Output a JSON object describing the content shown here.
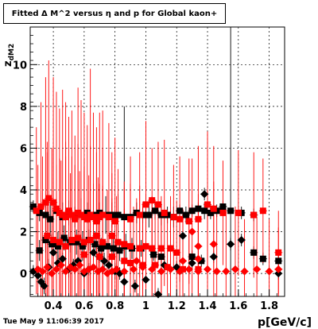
{
  "chart_data": {
    "type": "scatter",
    "title": "Fitted Δ M^2 versus η and p for Global kaon+",
    "xlabel": "p[GeV/c]",
    "ylabel": "z_dM2",
    "xlim": [
      0.25,
      1.9
    ],
    "ylim": [
      -1.1,
      11.8
    ],
    "xticks": [
      0.4,
      0.6,
      0.8,
      1.0,
      1.2,
      1.4,
      1.6,
      1.8
    ],
    "xtick_labels": [
      "0.4",
      "0.6",
      "0.8",
      "1",
      "1.2",
      "1.4",
      "1.6",
      "1.8"
    ],
    "yticks": [
      0,
      2,
      4,
      6,
      8,
      10
    ],
    "ytick_labels": [
      "0",
      "2",
      "4",
      "6",
      "8",
      "10"
    ],
    "grid": true,
    "series": [
      {
        "marker": "square",
        "color": "#000000",
        "points": [
          [
            0.27,
            3.2,
            0.3
          ],
          [
            0.31,
            2.9,
            0.4
          ],
          [
            0.35,
            2.8,
            0.6
          ],
          [
            0.38,
            2.6,
            0.8
          ],
          [
            0.42,
            3.0,
            0.5
          ],
          [
            0.46,
            2.7,
            0.7
          ],
          [
            0.5,
            2.9,
            0.6
          ],
          [
            0.54,
            2.7,
            0.5
          ],
          [
            0.58,
            2.8,
            0.8
          ],
          [
            0.62,
            2.9,
            0.5
          ],
          [
            0.66,
            2.8,
            0.6
          ],
          [
            0.7,
            2.9,
            0.5
          ],
          [
            0.74,
            2.8,
            0.9
          ],
          [
            0.78,
            2.8,
            0.6
          ],
          [
            0.82,
            2.8,
            1.0
          ],
          [
            0.86,
            2.7,
            5.3
          ],
          [
            0.9,
            2.7,
            0.6
          ],
          [
            0.94,
            2.9,
            0.5
          ],
          [
            0.98,
            2.8,
            0.4
          ],
          [
            1.02,
            2.8,
            0.6
          ],
          [
            1.06,
            3.0,
            0.4
          ],
          [
            1.1,
            2.8,
            0.5
          ],
          [
            1.14,
            2.8,
            0.4
          ],
          [
            1.18,
            2.7,
            0.5
          ],
          [
            1.22,
            3.0,
            0.3
          ],
          [
            1.26,
            2.8,
            0.4
          ],
          [
            1.3,
            3.0,
            0.3
          ],
          [
            1.34,
            3.1,
            0.3
          ],
          [
            1.38,
            3.0,
            0.4
          ],
          [
            1.42,
            2.9,
            0.3
          ],
          [
            1.46,
            3.0,
            0.3
          ],
          [
            1.5,
            3.2,
            0.3
          ],
          [
            1.55,
            3.0,
            10.8
          ],
          [
            1.62,
            2.9,
            0.3
          ],
          [
            1.7,
            2.8,
            0.3
          ],
          [
            0.31,
            1.1,
            0.5
          ],
          [
            0.35,
            1.6,
            0.6
          ],
          [
            0.39,
            1.4,
            0.5
          ],
          [
            0.43,
            1.3,
            0.7
          ],
          [
            0.47,
            1.7,
            0.6
          ],
          [
            0.51,
            1.5,
            0.5
          ],
          [
            0.55,
            1.5,
            0.6
          ],
          [
            0.59,
            1.3,
            0.7
          ],
          [
            0.63,
            1.6,
            0.5
          ],
          [
            0.67,
            1.4,
            0.6
          ],
          [
            0.71,
            1.2,
            0.5
          ],
          [
            0.75,
            1.3,
            0.6
          ],
          [
            0.79,
            1.2,
            0.5
          ],
          [
            0.83,
            1.1,
            0.5
          ],
          [
            0.87,
            1.3,
            0.6
          ],
          [
            0.91,
            1.2,
            0.5
          ],
          [
            0.97,
            1.2,
            0.4
          ],
          [
            1.05,
            0.9,
            0.3
          ],
          [
            1.1,
            0.8,
            0.4
          ],
          [
            1.3,
            0.8,
            0.3
          ],
          [
            1.36,
            0.6,
            0.3
          ],
          [
            1.7,
            1.0,
            0.3
          ],
          [
            1.76,
            0.7,
            0.3
          ],
          [
            1.86,
            0.6,
            0.3
          ]
        ]
      },
      {
        "marker": "diamond",
        "color": "#000000",
        "points": [
          [
            0.27,
            0.1,
            0.3
          ],
          [
            0.3,
            -0.1,
            0.4
          ],
          [
            0.32,
            -0.4,
            0.3
          ],
          [
            0.34,
            -0.6,
            0.4
          ],
          [
            0.37,
            0.3,
            0.4
          ],
          [
            0.4,
            1.0,
            0.3
          ],
          [
            0.43,
            0.5,
            0.4
          ],
          [
            0.46,
            0.7,
            0.3
          ],
          [
            0.5,
            0.2,
            0.4
          ],
          [
            0.53,
            0.4,
            0.3
          ],
          [
            0.56,
            0.6,
            0.5
          ],
          [
            0.6,
            0.0,
            0.4
          ],
          [
            0.63,
            0.2,
            0.3
          ],
          [
            0.66,
            1.0,
            0.4
          ],
          [
            0.7,
            0.8,
            0.3
          ],
          [
            0.73,
            0.6,
            0.4
          ],
          [
            0.76,
            0.4,
            0.3
          ],
          [
            0.8,
            0.1,
            0.4
          ],
          [
            0.83,
            0.0,
            0.3
          ],
          [
            0.86,
            -0.4,
            0.3
          ],
          [
            0.93,
            -0.6,
            0.3
          ],
          [
            1.0,
            -0.3,
            0.3
          ],
          [
            1.08,
            -1.0,
            0.3
          ],
          [
            1.12,
            0.4,
            0.3
          ],
          [
            1.2,
            0.3,
            0.3
          ],
          [
            1.24,
            1.8,
            0.3
          ],
          [
            1.3,
            0.5,
            0.3
          ],
          [
            1.38,
            3.8,
            0.3
          ],
          [
            1.44,
            0.8,
            0.3
          ],
          [
            1.55,
            1.4,
            0.3
          ],
          [
            1.62,
            1.6,
            0.3
          ],
          [
            1.86,
            0.0,
            0.3
          ]
        ]
      },
      {
        "marker": "square",
        "color": "#ff0000",
        "points": [
          [
            0.29,
            3.0,
            4.0
          ],
          [
            0.32,
            3.2,
            5.0
          ],
          [
            0.35,
            3.4,
            6.0
          ],
          [
            0.37,
            3.6,
            6.6
          ],
          [
            0.4,
            3.4,
            6.0
          ],
          [
            0.42,
            3.1,
            5.6
          ],
          [
            0.44,
            2.9,
            5.0
          ],
          [
            0.46,
            2.8,
            6.0
          ],
          [
            0.48,
            2.7,
            5.5
          ],
          [
            0.5,
            3.0,
            4.5
          ],
          [
            0.52,
            2.8,
            5.0
          ],
          [
            0.54,
            2.6,
            4.0
          ],
          [
            0.56,
            2.9,
            6.0
          ],
          [
            0.58,
            2.8,
            5.5
          ],
          [
            0.6,
            2.7,
            5.0
          ],
          [
            0.62,
            2.6,
            4.5
          ],
          [
            0.64,
            2.8,
            7.0
          ],
          [
            0.66,
            2.7,
            5.0
          ],
          [
            0.68,
            2.5,
            4.5
          ],
          [
            0.7,
            2.7,
            5.0
          ],
          [
            0.72,
            2.8,
            5.0
          ],
          [
            0.76,
            2.7,
            4.5
          ],
          [
            0.8,
            2.5,
            4.0
          ],
          [
            0.9,
            2.6,
            3.0
          ],
          [
            0.96,
            2.8,
            3.0
          ],
          [
            1.0,
            3.3,
            4.0
          ],
          [
            1.04,
            3.5,
            2.5
          ],
          [
            1.08,
            3.3,
            3.0
          ],
          [
            1.12,
            2.9,
            3.5
          ],
          [
            1.18,
            2.7,
            2.5
          ],
          [
            1.22,
            2.6,
            3.0
          ],
          [
            1.28,
            2.5,
            3.0
          ],
          [
            1.34,
            2.6,
            3.5
          ],
          [
            1.4,
            3.3,
            3.5
          ],
          [
            1.44,
            3.1,
            3.0
          ],
          [
            1.5,
            2.9,
            2.5
          ],
          [
            1.6,
            2.9,
            3.0
          ],
          [
            1.7,
            2.8,
            3.0
          ],
          [
            1.76,
            3.0,
            2.5
          ],
          [
            1.86,
            1.0,
            2.0
          ],
          [
            0.36,
            1.8,
            4.0
          ],
          [
            0.4,
            1.6,
            4.5
          ],
          [
            0.44,
            1.5,
            4.0
          ],
          [
            0.48,
            1.3,
            5.0
          ],
          [
            0.52,
            1.6,
            4.0
          ],
          [
            0.56,
            1.7,
            4.5
          ],
          [
            0.6,
            1.5,
            4.0
          ],
          [
            0.64,
            1.6,
            4.5
          ],
          [
            0.68,
            1.8,
            4.0
          ],
          [
            0.72,
            1.5,
            4.5
          ],
          [
            0.78,
            1.8,
            4.0
          ],
          [
            0.82,
            1.5,
            3.5
          ],
          [
            0.86,
            1.4,
            3.0
          ],
          [
            0.9,
            1.3,
            3.0
          ],
          [
            0.96,
            1.2,
            3.0
          ],
          [
            1.0,
            1.3,
            2.5
          ],
          [
            1.04,
            1.2,
            2.5
          ],
          [
            1.1,
            1.2,
            2.5
          ],
          [
            1.16,
            1.2,
            2.5
          ],
          [
            1.2,
            1.0,
            2.5
          ],
          [
            0.6,
            0.9,
            4.0
          ],
          [
            0.7,
            0.8,
            3.5
          ],
          [
            0.78,
            0.8,
            4.0
          ],
          [
            0.86,
            0.6,
            3.5
          ],
          [
            0.9,
            0.5,
            3.0
          ],
          [
            0.98,
            0.4,
            3.0
          ],
          [
            1.06,
            0.4,
            2.5
          ],
          [
            1.14,
            0.3,
            2.5
          ],
          [
            1.24,
            0.2,
            2.5
          ],
          [
            1.34,
            0.2,
            2.5
          ]
        ]
      },
      {
        "marker": "diamond",
        "color": "#ff0000",
        "points": [
          [
            0.3,
            0.2,
            5.0
          ],
          [
            0.33,
            0.1,
            5.5
          ],
          [
            0.36,
            0.3,
            6.0
          ],
          [
            0.39,
            0.0,
            6.0
          ],
          [
            0.42,
            0.2,
            5.0
          ],
          [
            0.45,
            0.4,
            5.0
          ],
          [
            0.48,
            0.1,
            5.5
          ],
          [
            0.51,
            0.3,
            4.5
          ],
          [
            0.54,
            0.2,
            5.0
          ],
          [
            0.57,
            0.4,
            4.5
          ],
          [
            0.6,
            0.1,
            5.0
          ],
          [
            0.63,
            0.2,
            4.5
          ],
          [
            0.66,
            0.3,
            4.0
          ],
          [
            0.69,
            0.1,
            4.5
          ],
          [
            0.72,
            0.2,
            4.0
          ],
          [
            0.75,
            0.0,
            4.0
          ],
          [
            0.78,
            0.1,
            3.5
          ],
          [
            0.81,
            0.2,
            3.5
          ],
          [
            0.86,
            0.1,
            3.0
          ],
          [
            0.92,
            0.2,
            3.0
          ],
          [
            0.98,
            0.3,
            3.0
          ],
          [
            1.04,
            0.2,
            2.5
          ],
          [
            1.1,
            0.1,
            2.5
          ],
          [
            1.16,
            0.2,
            2.5
          ],
          [
            1.22,
            0.1,
            2.5
          ],
          [
            1.28,
            0.2,
            2.5
          ],
          [
            1.34,
            0.1,
            2.5
          ],
          [
            1.4,
            0.2,
            3.0
          ],
          [
            1.46,
            0.1,
            3.0
          ],
          [
            1.52,
            0.1,
            3.0
          ],
          [
            1.58,
            0.2,
            3.0
          ],
          [
            1.64,
            0.1,
            2.5
          ],
          [
            1.72,
            0.2,
            2.5
          ],
          [
            1.8,
            0.1,
            2.5
          ],
          [
            1.86,
            0.2,
            2.0
          ],
          [
            1.34,
            1.3,
            2.5
          ],
          [
            1.44,
            1.4,
            3.0
          ],
          [
            1.34,
            0.7,
            2.0
          ],
          [
            1.24,
            0.6,
            2.5
          ],
          [
            0.94,
            0.6,
            3.0
          ],
          [
            1.3,
            2.0,
            3.5
          ]
        ]
      }
    ]
  },
  "footer": {
    "timestamp": "Tue May  9 11:06:39 2017"
  }
}
